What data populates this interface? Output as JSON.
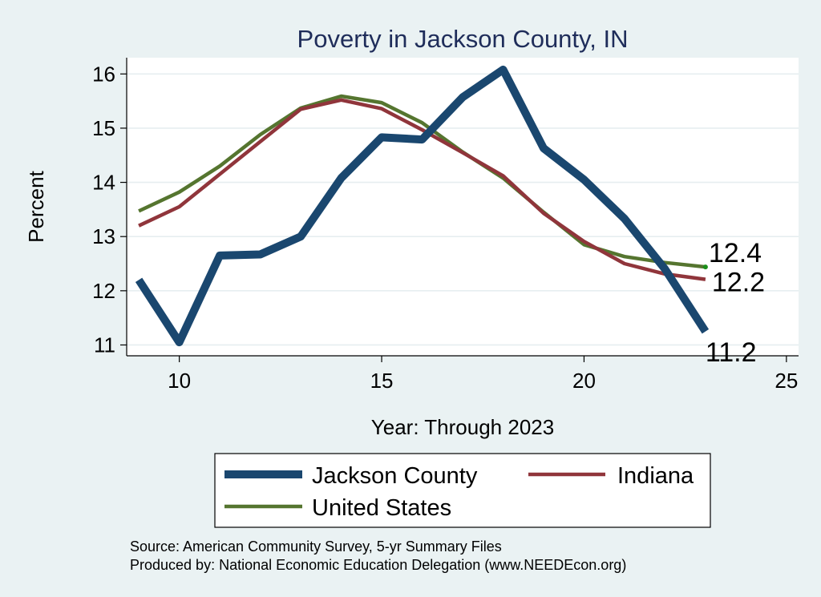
{
  "chart_data": {
    "type": "line",
    "title": "Poverty in Jackson County, IN",
    "xlabel": "Year: Through 2023",
    "ylabel": "Percent",
    "xlim": [
      8.7,
      25.3
    ],
    "ylim": [
      10.8,
      16.3
    ],
    "x_ticks": [
      10,
      15,
      20,
      25
    ],
    "y_ticks": [
      11,
      12,
      13,
      14,
      15,
      16
    ],
    "grid": true,
    "legend_position": "bottom",
    "series": [
      {
        "name": "Jackson County",
        "color": "#1a476f",
        "weight": "thick",
        "x": [
          9,
          10,
          11,
          12,
          13,
          14,
          15,
          16,
          17,
          18,
          19,
          20,
          21,
          22,
          23
        ],
        "values": [
          12.2,
          11.05,
          12.65,
          12.67,
          13.0,
          14.08,
          14.83,
          14.79,
          15.57,
          16.08,
          14.63,
          14.05,
          13.33,
          12.4,
          11.25
        ]
      },
      {
        "name": "Indiana",
        "color": "#90353b",
        "weight": "medium",
        "x": [
          9,
          10,
          11,
          12,
          13,
          14,
          15,
          16,
          17,
          18,
          19,
          20,
          21,
          22,
          23
        ],
        "values": [
          13.2,
          13.55,
          14.15,
          14.75,
          15.35,
          15.52,
          15.36,
          14.97,
          14.55,
          14.12,
          13.43,
          12.91,
          12.5,
          12.31,
          12.21
        ]
      },
      {
        "name": "United States",
        "color": "#55752f",
        "weight": "medium",
        "x": [
          9,
          10,
          11,
          12,
          13,
          14,
          15,
          16,
          17,
          18,
          19,
          20,
          21,
          22,
          23
        ],
        "values": [
          13.47,
          13.82,
          14.3,
          14.88,
          15.37,
          15.59,
          15.47,
          15.1,
          14.56,
          14.08,
          13.45,
          12.85,
          12.63,
          12.52,
          12.44
        ]
      }
    ],
    "end_labels": [
      {
        "series": "United States",
        "text": "12.4",
        "value": 12.4
      },
      {
        "series": "Indiana",
        "text": "12.2",
        "value": 12.2
      },
      {
        "series": "Jackson County",
        "text": "11.2",
        "value": 11.2
      }
    ],
    "legend": [
      {
        "label": "Jackson County",
        "series": "Jackson County"
      },
      {
        "label": "Indiana",
        "series": "Indiana"
      },
      {
        "label": "United States",
        "series": "United States"
      }
    ],
    "notes": [
      "Source: American Community Survey, 5-yr Summary Files",
      "Produced by: National Economic Education Delegation (www.NEEDEcon.org)"
    ]
  }
}
